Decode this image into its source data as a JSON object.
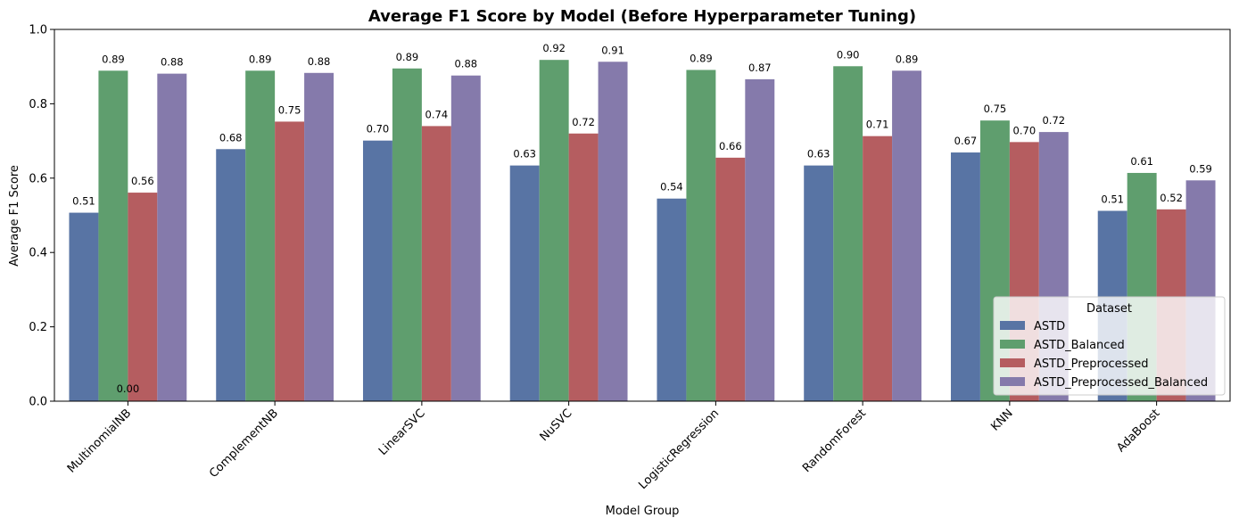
{
  "chart_data": {
    "type": "bar",
    "title": "Average F1 Score by Model (Before Hyperparameter Tuning)",
    "xlabel": "Model Group",
    "ylabel": "Average F1 Score",
    "ylim": [
      0,
      1.0
    ],
    "yticks": [
      "0.0",
      "0.2",
      "0.4",
      "0.6",
      "0.8",
      "1.0"
    ],
    "grid": false,
    "legend_title": "Dataset",
    "legend_position": "lower-right",
    "categories": [
      "MultinomialNB",
      "ComplementNB",
      "LinearSVC",
      "NuSVC",
      "LogisticRegression",
      "RandomForest",
      "KNN",
      "AdaBoost"
    ],
    "series": [
      {
        "name": "ASTD",
        "color": "#5874a4",
        "values": [
          0.507,
          0.678,
          0.701,
          0.634,
          0.545,
          0.634,
          0.669,
          0.512
        ],
        "labels": [
          "0.51",
          "0.68",
          "0.70",
          "0.63",
          "0.54",
          "0.63",
          "0.67",
          "0.51"
        ]
      },
      {
        "name": "ASTD_Balanced",
        "color": "#5f9e6e",
        "values": [
          0.889,
          0.889,
          0.895,
          0.918,
          0.891,
          0.901,
          0.755,
          0.614
        ],
        "labels": [
          "0.89",
          "0.89",
          "0.89",
          "0.92",
          "0.89",
          "0.90",
          "0.75",
          "0.61"
        ]
      },
      {
        "name": "ASTD_Preprocessed",
        "color": "#b55d60",
        "values": [
          0.561,
          0.752,
          0.74,
          0.72,
          0.655,
          0.713,
          0.697,
          0.516
        ],
        "labels": [
          "0.56",
          "0.75",
          "0.74",
          "0.72",
          "0.66",
          "0.71",
          "0.70",
          "0.52"
        ]
      },
      {
        "name": "ASTD_Preprocessed_Balanced",
        "color": "#857aab",
        "values": [
          0.881,
          0.883,
          0.876,
          0.913,
          0.866,
          0.889,
          0.724,
          0.594
        ],
        "labels": [
          "0.88",
          "0.88",
          "0.88",
          "0.91",
          "0.87",
          "0.89",
          "0.72",
          "0.59"
        ]
      }
    ],
    "annotations": [
      {
        "text": "0.00",
        "category": "MultinomialNB",
        "y": 0.0
      }
    ]
  }
}
